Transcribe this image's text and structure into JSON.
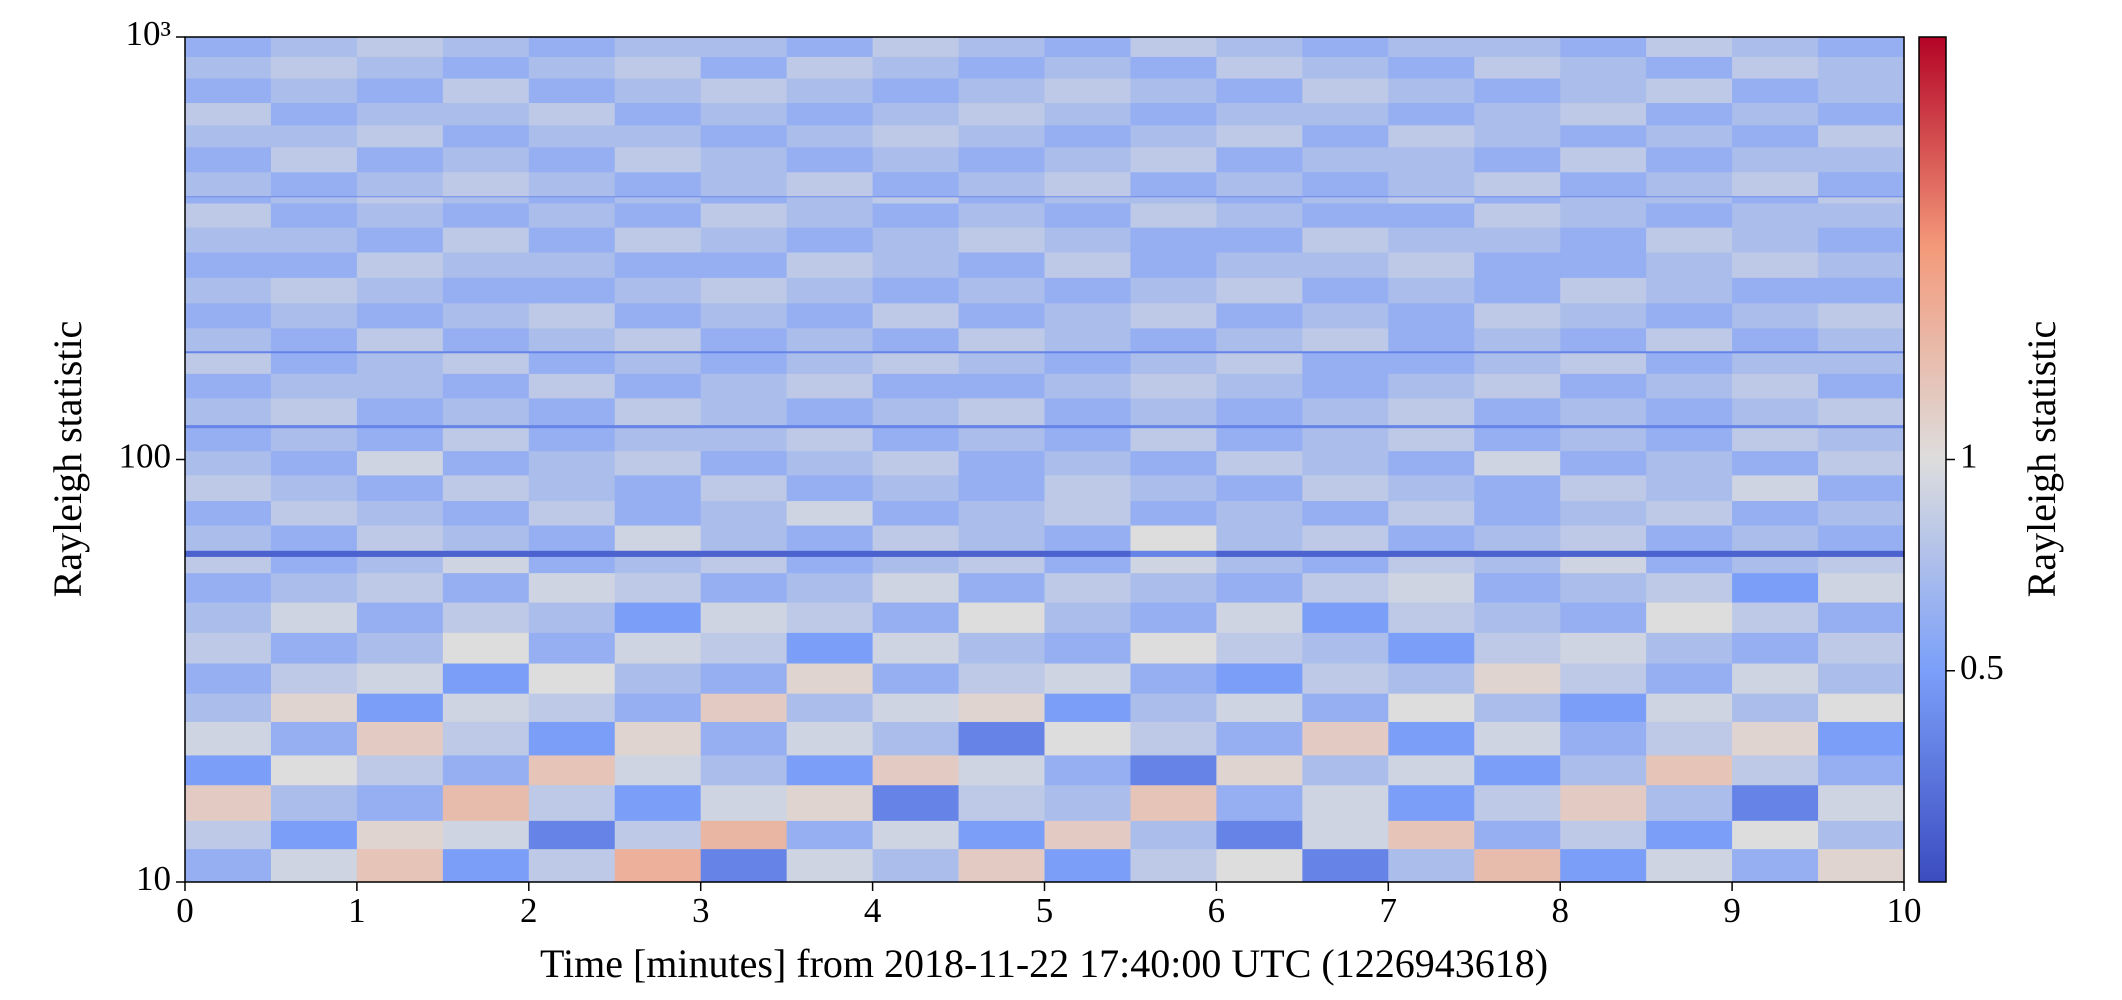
{
  "chart_data": {
    "type": "heatmap",
    "xlabel": "Time [minutes] from 2018-11-22 17:40:00 UTC (1226943618)",
    "ylabel": "Rayleigh statistic",
    "xlim": [
      0,
      10
    ],
    "xticks": [
      0,
      1,
      2,
      3,
      4,
      5,
      6,
      7,
      8,
      9,
      10
    ],
    "ylim": [
      10,
      1000
    ],
    "yscale": "log",
    "yticks": [
      10,
      100,
      {
        "value": 1000,
        "label": "10³"
      }
    ],
    "xbins": [
      0,
      0.5,
      1,
      1.5,
      2,
      2.5,
      3,
      3.5,
      4,
      4.5,
      5,
      5.5,
      6,
      6.5,
      7,
      7.5,
      8,
      8.5,
      9,
      9.5,
      10
    ],
    "ybins": [
      10,
      12,
      14,
      17,
      20,
      24,
      28,
      33,
      39,
      46,
      54,
      59,
      61,
      70,
      80,
      92,
      105,
      119,
      121,
      140,
      160,
      179,
      181,
      205,
      235,
      270,
      310,
      355,
      405,
      419,
      421,
      480,
      550,
      620,
      700,
      800,
      900,
      1000
    ],
    "colormap": [
      "#3b4cc0",
      "#7b9ff9",
      "#dddddd",
      "#f49a7b",
      "#b40426"
    ],
    "colorbar": {
      "label": "Rayleigh statistic",
      "lim": [
        0.25,
        4
      ],
      "scale": "log",
      "ticks": [
        0.5,
        1
      ]
    },
    "values": [
      [
        0.6,
        0.9,
        1.3,
        0.5,
        0.8,
        1.6,
        0.4,
        0.9,
        0.7,
        1.2,
        0.5,
        0.8,
        1.0,
        0.4,
        0.7,
        1.4,
        0.5,
        0.9,
        0.6,
        1.1
      ],
      [
        0.8,
        0.5,
        1.1,
        0.9,
        0.4,
        0.8,
        1.5,
        0.6,
        0.9,
        0.5,
        1.2,
        0.7,
        0.4,
        0.9,
        1.3,
        0.6,
        0.8,
        0.5,
        1.0,
        0.7
      ],
      [
        1.2,
        0.7,
        0.6,
        1.4,
        0.8,
        0.5,
        0.9,
        1.1,
        0.4,
        0.8,
        0.7,
        1.3,
        0.6,
        0.9,
        0.5,
        0.8,
        1.2,
        0.7,
        0.4,
        0.9
      ],
      [
        0.5,
        1.0,
        0.8,
        0.6,
        1.3,
        0.9,
        0.7,
        0.5,
        1.2,
        0.9,
        0.6,
        0.4,
        1.1,
        0.7,
        0.9,
        0.5,
        0.7,
        1.3,
        0.8,
        0.6
      ],
      [
        0.9,
        0.6,
        1.2,
        0.8,
        0.5,
        1.1,
        0.6,
        0.9,
        0.7,
        0.4,
        1.0,
        0.8,
        0.6,
        1.2,
        0.5,
        0.9,
        0.6,
        0.8,
        1.1,
        0.5
      ],
      [
        0.7,
        1.1,
        0.5,
        0.9,
        0.8,
        0.6,
        1.2,
        0.7,
        0.9,
        1.1,
        0.5,
        0.7,
        0.9,
        0.6,
        1.0,
        0.7,
        0.5,
        0.9,
        0.7,
        1.0
      ],
      [
        0.6,
        0.8,
        0.9,
        0.5,
        1.0,
        0.7,
        0.6,
        1.1,
        0.6,
        0.8,
        0.9,
        0.6,
        0.5,
        0.8,
        0.7,
        1.1,
        0.8,
        0.6,
        0.9,
        0.7
      ],
      [
        0.8,
        0.6,
        0.7,
        1.0,
        0.6,
        0.9,
        0.8,
        0.5,
        0.9,
        0.7,
        0.6,
        1.0,
        0.8,
        0.7,
        0.5,
        0.8,
        0.9,
        0.7,
        0.6,
        0.8
      ],
      [
        0.7,
        0.9,
        0.6,
        0.8,
        0.7,
        0.5,
        0.9,
        0.8,
        0.6,
        1.0,
        0.7,
        0.6,
        0.9,
        0.5,
        0.8,
        0.7,
        0.6,
        1.0,
        0.8,
        0.6
      ],
      [
        0.6,
        0.7,
        0.8,
        0.6,
        0.9,
        0.8,
        0.6,
        0.7,
        0.9,
        0.6,
        0.8,
        0.7,
        0.6,
        0.8,
        0.9,
        0.6,
        0.7,
        0.8,
        0.5,
        0.9
      ],
      [
        0.8,
        0.6,
        0.7,
        0.9,
        0.6,
        0.7,
        0.8,
        0.6,
        0.7,
        0.8,
        0.6,
        0.9,
        0.7,
        0.6,
        0.8,
        0.7,
        0.9,
        0.6,
        0.7,
        0.8
      ],
      [
        0.3,
        0.3,
        0.3,
        0.3,
        0.3,
        0.3,
        0.3,
        0.3,
        0.3,
        0.3,
        0.3,
        0.4,
        0.3,
        0.3,
        0.3,
        0.3,
        0.3,
        0.3,
        0.3,
        0.3
      ],
      [
        0.7,
        0.6,
        0.8,
        0.7,
        0.6,
        0.9,
        0.7,
        0.6,
        0.8,
        0.7,
        0.6,
        1.0,
        0.7,
        0.8,
        0.6,
        0.7,
        0.8,
        0.6,
        0.7,
        0.6
      ],
      [
        0.6,
        0.8,
        0.7,
        0.6,
        0.8,
        0.6,
        0.7,
        0.9,
        0.6,
        0.7,
        0.8,
        0.6,
        0.7,
        0.6,
        0.8,
        0.6,
        0.7,
        0.8,
        0.6,
        0.7
      ],
      [
        0.8,
        0.7,
        0.6,
        0.8,
        0.7,
        0.6,
        0.8,
        0.6,
        0.7,
        0.6,
        0.8,
        0.7,
        0.6,
        0.8,
        0.7,
        0.6,
        0.8,
        0.7,
        0.9,
        0.6
      ],
      [
        0.7,
        0.6,
        0.9,
        0.6,
        0.7,
        0.8,
        0.6,
        0.7,
        0.8,
        0.6,
        0.7,
        0.6,
        0.8,
        0.7,
        0.6,
        0.9,
        0.6,
        0.7,
        0.6,
        0.8
      ],
      [
        0.6,
        0.7,
        0.6,
        0.8,
        0.6,
        0.7,
        0.7,
        0.8,
        0.6,
        0.7,
        0.6,
        0.8,
        0.6,
        0.7,
        0.8,
        0.6,
        0.7,
        0.6,
        0.8,
        0.7
      ],
      [
        0.4,
        0.4,
        0.4,
        0.4,
        0.4,
        0.4,
        0.4,
        0.4,
        0.4,
        0.4,
        0.4,
        0.4,
        0.4,
        0.4,
        0.4,
        0.4,
        0.4,
        0.4,
        0.4,
        0.4
      ],
      [
        0.7,
        0.8,
        0.6,
        0.7,
        0.6,
        0.8,
        0.7,
        0.6,
        0.7,
        0.8,
        0.6,
        0.7,
        0.6,
        0.7,
        0.8,
        0.6,
        0.7,
        0.6,
        0.7,
        0.8
      ],
      [
        0.6,
        0.7,
        0.7,
        0.6,
        0.8,
        0.6,
        0.7,
        0.8,
        0.6,
        0.6,
        0.7,
        0.8,
        0.7,
        0.6,
        0.7,
        0.8,
        0.6,
        0.7,
        0.8,
        0.6
      ],
      [
        0.8,
        0.6,
        0.7,
        0.8,
        0.6,
        0.7,
        0.6,
        0.7,
        0.8,
        0.7,
        0.6,
        0.7,
        0.8,
        0.6,
        0.6,
        0.7,
        0.8,
        0.6,
        0.7,
        0.7
      ],
      [
        0.4,
        0.4,
        0.4,
        0.4,
        0.4,
        0.4,
        0.4,
        0.4,
        0.4,
        0.4,
        0.4,
        0.4,
        0.4,
        0.4,
        0.4,
        0.4,
        0.4,
        0.4,
        0.4,
        0.4
      ],
      [
        0.7,
        0.6,
        0.8,
        0.6,
        0.7,
        0.8,
        0.6,
        0.7,
        0.6,
        0.8,
        0.7,
        0.6,
        0.7,
        0.8,
        0.6,
        0.7,
        0.6,
        0.8,
        0.6,
        0.7
      ],
      [
        0.6,
        0.7,
        0.6,
        0.7,
        0.8,
        0.6,
        0.7,
        0.6,
        0.8,
        0.6,
        0.7,
        0.8,
        0.6,
        0.7,
        0.6,
        0.8,
        0.7,
        0.6,
        0.7,
        0.8
      ],
      [
        0.7,
        0.8,
        0.7,
        0.6,
        0.6,
        0.7,
        0.8,
        0.7,
        0.6,
        0.7,
        0.6,
        0.7,
        0.8,
        0.6,
        0.7,
        0.6,
        0.8,
        0.7,
        0.6,
        0.6
      ],
      [
        0.6,
        0.6,
        0.8,
        0.7,
        0.7,
        0.6,
        0.6,
        0.8,
        0.7,
        0.6,
        0.8,
        0.6,
        0.7,
        0.7,
        0.8,
        0.6,
        0.6,
        0.7,
        0.8,
        0.7
      ],
      [
        0.7,
        0.7,
        0.6,
        0.8,
        0.6,
        0.8,
        0.7,
        0.6,
        0.7,
        0.8,
        0.7,
        0.6,
        0.6,
        0.8,
        0.7,
        0.7,
        0.6,
        0.8,
        0.7,
        0.6
      ],
      [
        0.8,
        0.6,
        0.7,
        0.6,
        0.7,
        0.6,
        0.8,
        0.7,
        0.6,
        0.7,
        0.6,
        0.8,
        0.7,
        0.6,
        0.6,
        0.8,
        0.7,
        0.6,
        0.7,
        0.7
      ],
      [
        0.6,
        0.7,
        0.8,
        0.7,
        0.6,
        0.7,
        0.6,
        0.7,
        0.8,
        0.6,
        0.7,
        0.7,
        0.6,
        0.7,
        0.8,
        0.6,
        0.7,
        0.7,
        0.6,
        0.8
      ],
      [
        0.4,
        0.4,
        0.4,
        0.4,
        0.4,
        0.4,
        0.4,
        0.4,
        0.4,
        0.4,
        0.4,
        0.4,
        0.4,
        0.4,
        0.4,
        0.4,
        0.4,
        0.4,
        0.4,
        0.4
      ],
      [
        0.7,
        0.6,
        0.7,
        0.8,
        0.7,
        0.6,
        0.7,
        0.8,
        0.6,
        0.7,
        0.8,
        0.6,
        0.7,
        0.6,
        0.7,
        0.8,
        0.6,
        0.7,
        0.8,
        0.6
      ],
      [
        0.6,
        0.8,
        0.6,
        0.7,
        0.6,
        0.8,
        0.7,
        0.6,
        0.7,
        0.6,
        0.7,
        0.8,
        0.6,
        0.7,
        0.7,
        0.6,
        0.8,
        0.6,
        0.7,
        0.7
      ],
      [
        0.7,
        0.7,
        0.8,
        0.6,
        0.7,
        0.7,
        0.6,
        0.7,
        0.8,
        0.7,
        0.6,
        0.7,
        0.8,
        0.6,
        0.8,
        0.7,
        0.6,
        0.7,
        0.6,
        0.8
      ],
      [
        0.8,
        0.6,
        0.7,
        0.7,
        0.8,
        0.6,
        0.7,
        0.6,
        0.7,
        0.8,
        0.7,
        0.6,
        0.7,
        0.7,
        0.6,
        0.7,
        0.8,
        0.6,
        0.7,
        0.6
      ],
      [
        0.6,
        0.7,
        0.6,
        0.8,
        0.6,
        0.7,
        0.8,
        0.7,
        0.6,
        0.7,
        0.8,
        0.7,
        0.6,
        0.8,
        0.7,
        0.6,
        0.7,
        0.8,
        0.6,
        0.7
      ],
      [
        0.7,
        0.8,
        0.7,
        0.6,
        0.7,
        0.8,
        0.6,
        0.8,
        0.7,
        0.6,
        0.7,
        0.6,
        0.8,
        0.7,
        0.6,
        0.8,
        0.7,
        0.6,
        0.8,
        0.7
      ],
      [
        0.6,
        0.7,
        0.8,
        0.7,
        0.6,
        0.7,
        0.7,
        0.6,
        0.8,
        0.7,
        0.6,
        0.8,
        0.7,
        0.6,
        0.7,
        0.7,
        0.6,
        0.8,
        0.7,
        0.6
      ]
    ]
  }
}
